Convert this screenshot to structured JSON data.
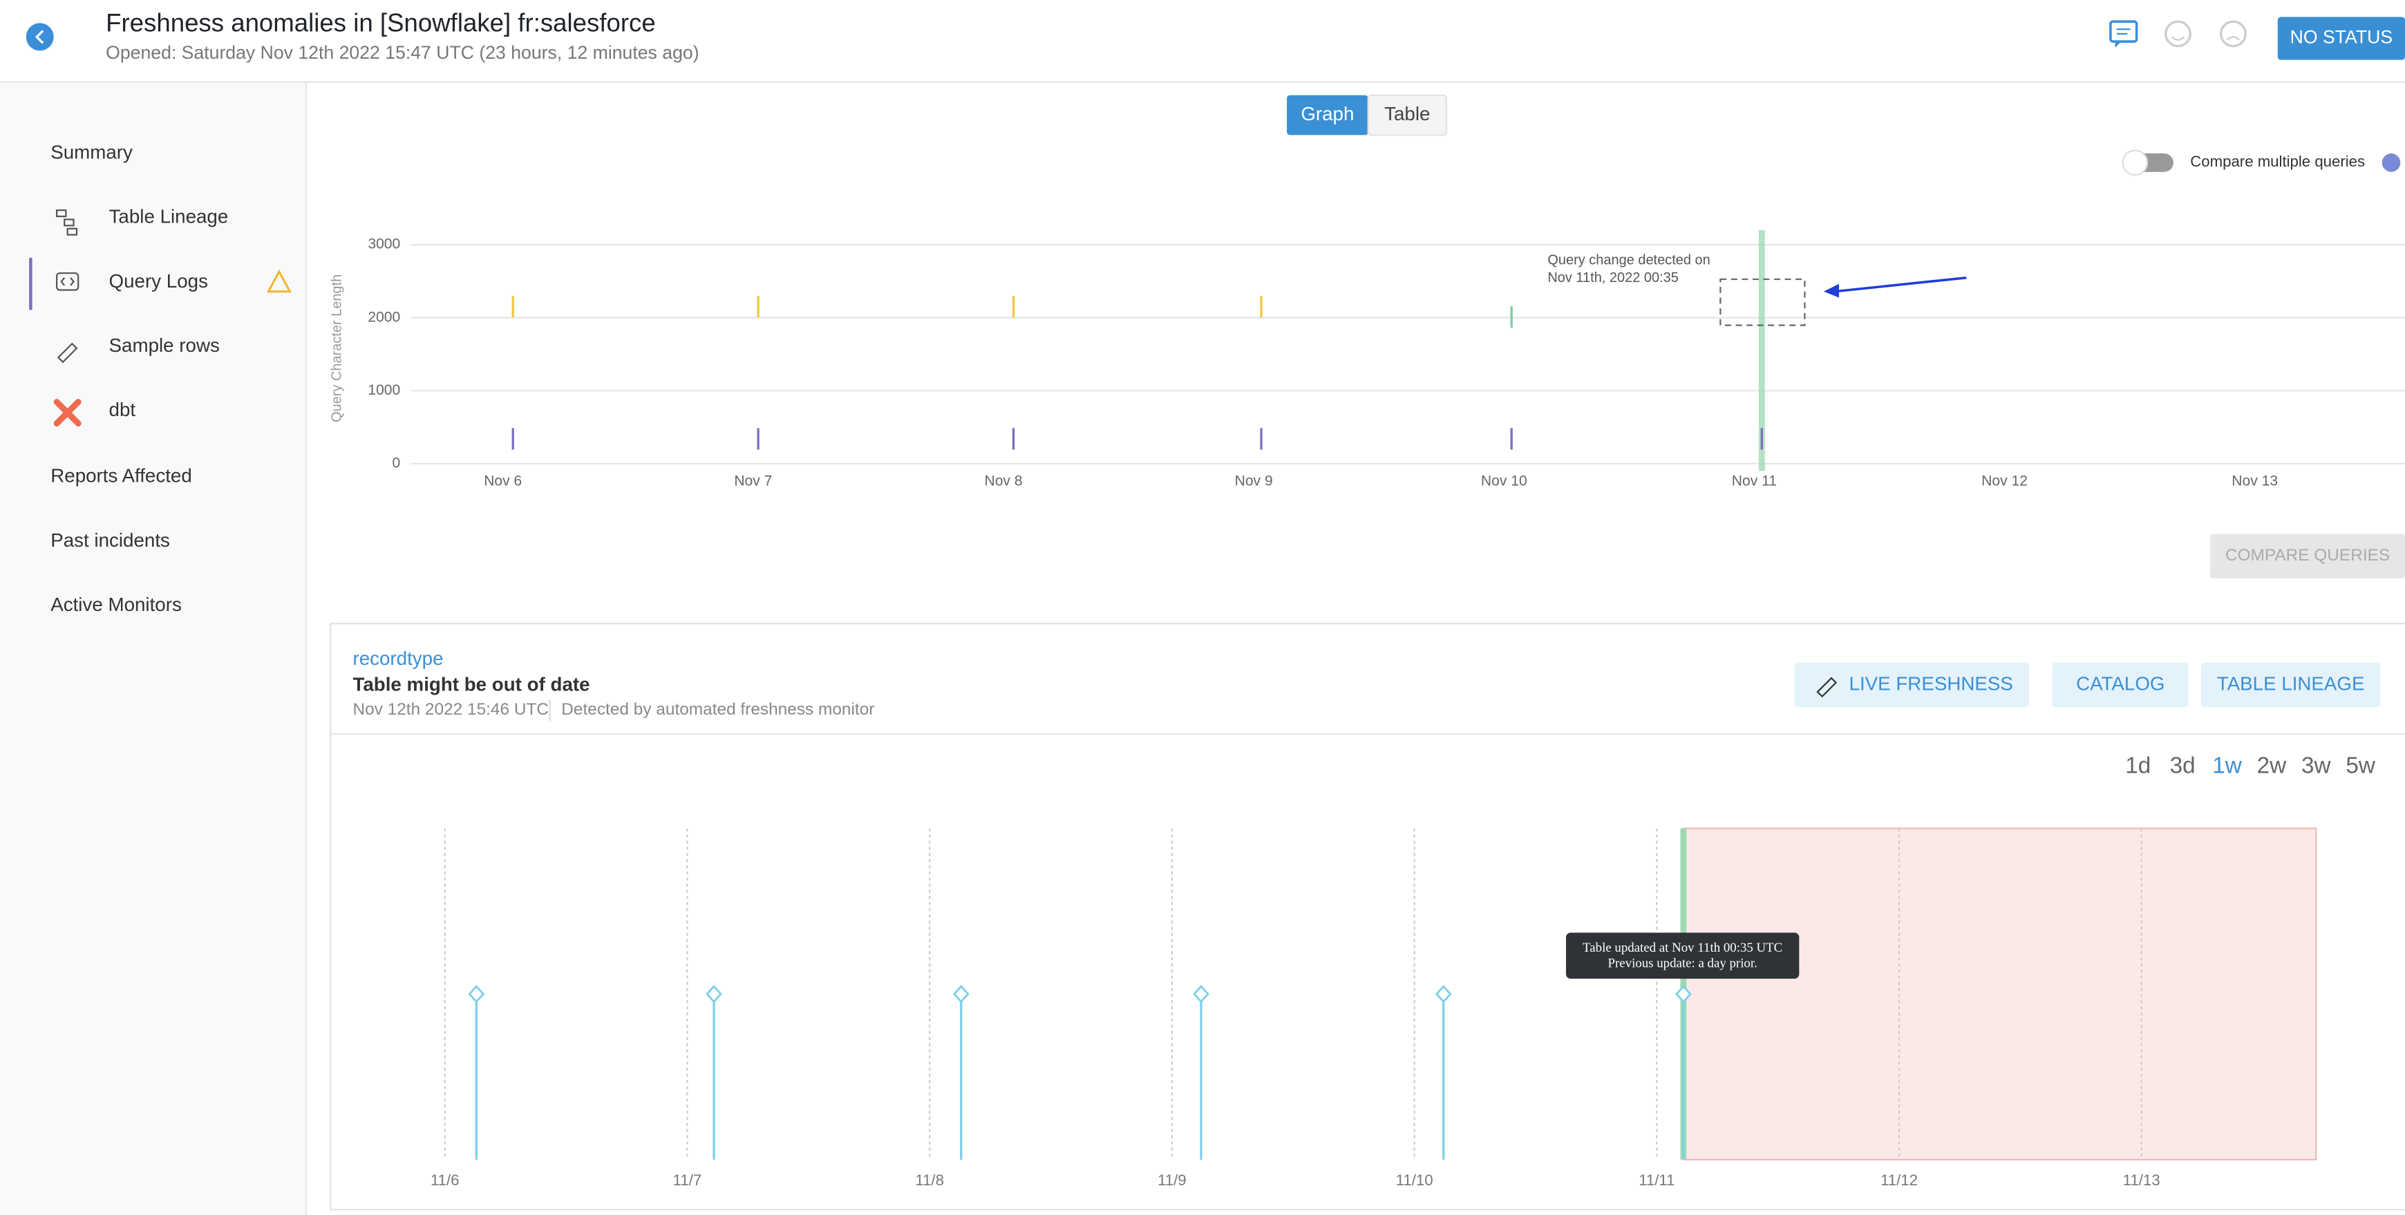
{
  "header": {
    "title": "Freshness anomalies in [Snowflake] fr:salesforce",
    "subtitle": "Opened: Saturday Nov 12th 2022 15:47 UTC (23 hours, 12 minutes ago)",
    "status_button": "NO STATUS"
  },
  "sidebar": {
    "items": [
      "Summary",
      "Table Lineage",
      "Query Logs",
      "Sample rows",
      "dbt",
      "Reports Affected",
      "Past incidents",
      "Active Monitors"
    ]
  },
  "tabs": [
    "Graph",
    "Table"
  ],
  "compare_toggle": "Compare multiple queries",
  "compare_button": "COMPARE QUERIES",
  "incident": {
    "field": "recordtype",
    "title": "Table might be out of date",
    "time": "Nov 12th 2022 15:46 UTC",
    "detector": "Detected by automated freshness monitor",
    "buttons": [
      "LIVE FRESHNESS",
      "CATALOG",
      "TABLE LINEAGE"
    ],
    "ranges": [
      "1d",
      "3d",
      "1w",
      "2w",
      "3w",
      "5w"
    ]
  },
  "chart_data": [
    {
      "type": "scatter",
      "y_label": "Query Character Length",
      "xlim": [
        5.4,
        13.6
      ],
      "xticks": [
        {
          "value": 6,
          "label": "Nov 6"
        },
        {
          "value": 7,
          "label": "Nov 7"
        },
        {
          "value": 8,
          "label": "Nov 8"
        },
        {
          "value": 9,
          "label": "Nov 9"
        },
        {
          "value": 10,
          "label": "Nov 10"
        },
        {
          "value": 11,
          "label": "Nov 11"
        },
        {
          "value": 12,
          "label": "Nov 12"
        },
        {
          "value": 13,
          "label": "Nov 13"
        }
      ],
      "ylim": [
        -100,
        3200
      ],
      "yticks": [
        0,
        1000,
        2000,
        3000
      ],
      "grid": true,
      "highlight_x": 11.03,
      "annotation": [
        "Query change detected on",
        "Nov 11th, 2022 00:35"
      ],
      "series": [
        {
          "color": "#f2c744",
          "x": [
            6.04,
            7.02,
            8.04,
            9.03
          ],
          "values": [
            2150,
            2150,
            2150,
            2150
          ]
        },
        {
          "color": "#7ccfa4",
          "x": [
            10.03
          ],
          "values": [
            2010
          ]
        },
        {
          "color": "#7b6fc0",
          "x": [
            6.04,
            7.02,
            8.04,
            9.03,
            10.03,
            11.03
          ],
          "values": [
            340,
            340,
            340,
            340,
            340,
            340
          ]
        }
      ]
    },
    {
      "type": "stem",
      "xlim": [
        5.62,
        13.72
      ],
      "xticks": [
        {
          "value": 6,
          "label": "11/6"
        },
        {
          "value": 7,
          "label": "11/7"
        },
        {
          "value": 8,
          "label": "11/8"
        },
        {
          "value": 9,
          "label": "11/9"
        },
        {
          "value": 10,
          "label": "11/10"
        },
        {
          "value": 11,
          "label": "11/11"
        },
        {
          "value": 12,
          "label": "11/12"
        },
        {
          "value": 13,
          "label": "11/13"
        }
      ],
      "color": "#7fd0e8",
      "x": [
        6.13,
        7.11,
        8.13,
        9.12,
        10.12,
        11.11
      ],
      "anomaly_range": [
        11.11,
        13.72
      ],
      "tooltip": [
        "Table updated at Nov 11th 00:35 UTC",
        "Previous update: a day prior."
      ]
    }
  ]
}
